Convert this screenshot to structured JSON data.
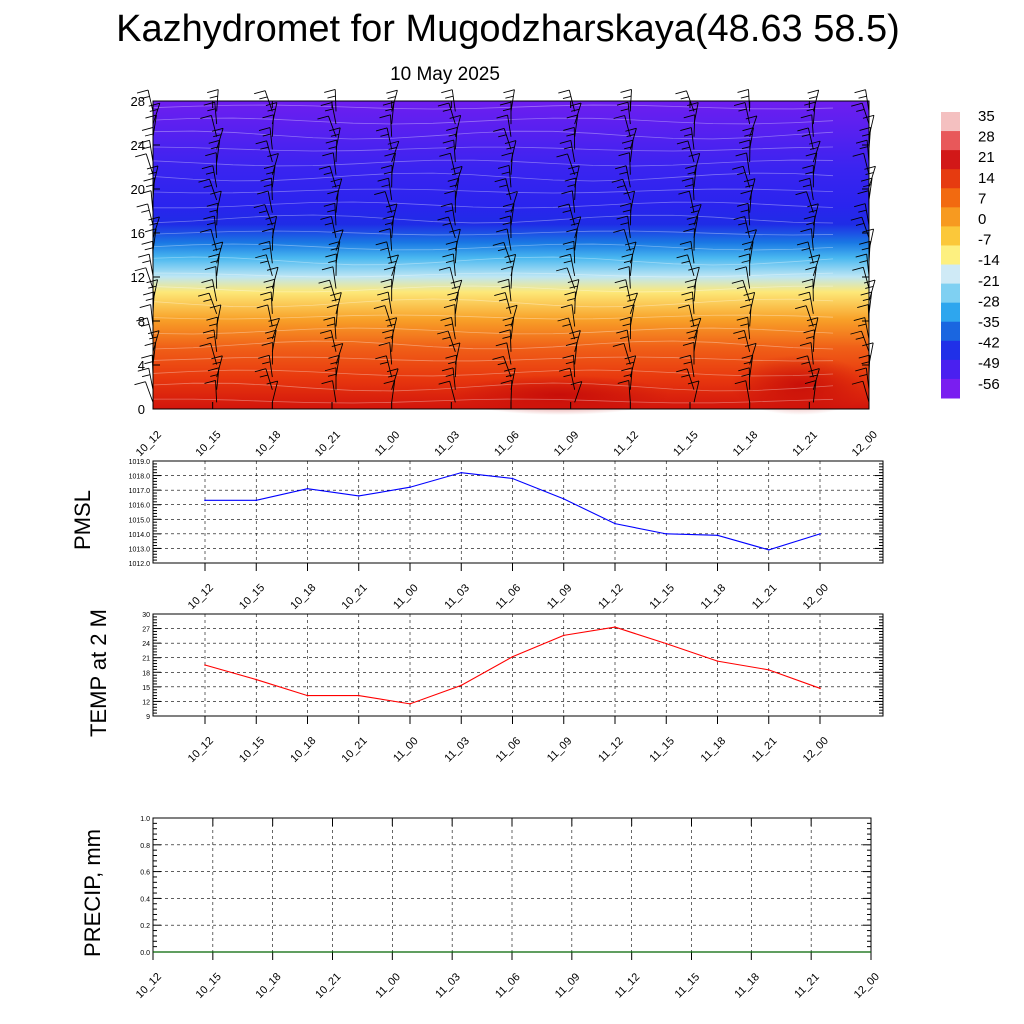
{
  "header": {
    "title": "Kazhydromet for Mugodzharskaya(48.63 58.5)",
    "subtitle": "10 May 2025"
  },
  "chart_data": [
    {
      "type": "heatmap",
      "title": "",
      "x_tick_labels": [
        "10_12",
        "10_15",
        "10_18",
        "10_21",
        "11_00",
        "11_03",
        "11_06",
        "11_09",
        "11_12",
        "11_15",
        "11_18",
        "11_21",
        "12_00"
      ],
      "y_tick_labels": [
        "0",
        "4",
        "8",
        "12",
        "16",
        "20",
        "24",
        "28"
      ],
      "ylim": [
        0,
        28
      ],
      "colorbar_labels": [
        "35",
        "28",
        "21",
        "14",
        "7",
        "0",
        "-7",
        "-14",
        "-21",
        "-28",
        "-35",
        "-42",
        "-49",
        "-56"
      ],
      "colorbar_colors": [
        "#f4c0c0",
        "#e8585a",
        "#d21818",
        "#e63b10",
        "#f26a10",
        "#f79a20",
        "#fbc83a",
        "#fdf080",
        "#cfeaf6",
        "#7fd0f2",
        "#2ea6ee",
        "#1a66e0",
        "#2030e8",
        "#4a20f0",
        "#7a1ef0"
      ],
      "approx_values": {
        "surface": 26,
        "level_8": 12,
        "level_12": -14,
        "level_16": -40,
        "level_20": -56,
        "level_28": -56
      },
      "wind_barbs": true
    },
    {
      "type": "line",
      "ylabel": "PMSL",
      "x": [
        "10_12",
        "10_15",
        "10_18",
        "10_21",
        "11_00",
        "11_03",
        "11_06",
        "11_09",
        "11_12",
        "11_15",
        "11_18",
        "11_21",
        "12_00"
      ],
      "series": [
        {
          "values": [
            1016.3,
            1016.3,
            1017.1,
            1016.6,
            1017.2,
            1018.2,
            1017.8,
            1016.4,
            1014.7,
            1014.0,
            1013.9,
            1012.9,
            1014.0
          ],
          "color": "#0000ff"
        }
      ],
      "ylim": [
        1012.0,
        1019.0
      ],
      "y_tick_labels": [
        "1012.0",
        "1013.0",
        "1014.0",
        "1015.0",
        "1016.0",
        "1017.0",
        "1018.0",
        "1019.0"
      ],
      "grid": true
    },
    {
      "type": "line",
      "ylabel": "TEMP at 2 M",
      "x": [
        "10_12",
        "10_15",
        "10_18",
        "10_21",
        "11_00",
        "11_03",
        "11_06",
        "11_09",
        "11_12",
        "11_15",
        "11_18",
        "11_21",
        "12_00"
      ],
      "series": [
        {
          "values": [
            19.5,
            16.5,
            13.2,
            13.2,
            11.5,
            15.3,
            21.2,
            25.6,
            27.3,
            23.9,
            20.3,
            18.5,
            14.7
          ],
          "color": "#ff0000"
        }
      ],
      "ylim": [
        9,
        30
      ],
      "y_tick_labels": [
        "9",
        "12",
        "15",
        "18",
        "21",
        "24",
        "27",
        "30"
      ],
      "grid": true
    },
    {
      "type": "bar",
      "ylabel": "PRECIP, mm",
      "x": [
        "10_12",
        "10_15",
        "10_18",
        "10_21",
        "11_00",
        "11_03",
        "11_06",
        "11_09",
        "11_12",
        "11_15",
        "11_18",
        "11_21",
        "12_00"
      ],
      "values": [
        0,
        0,
        0,
        0,
        0,
        0,
        0,
        0,
        0,
        0,
        0,
        0,
        0
      ],
      "color": "#006400",
      "ylim": [
        0.0,
        1.0
      ],
      "y_tick_labels": [
        "0.0",
        "0.2",
        "0.4",
        "0.6",
        "0.8",
        "1.0"
      ],
      "grid": true
    }
  ]
}
